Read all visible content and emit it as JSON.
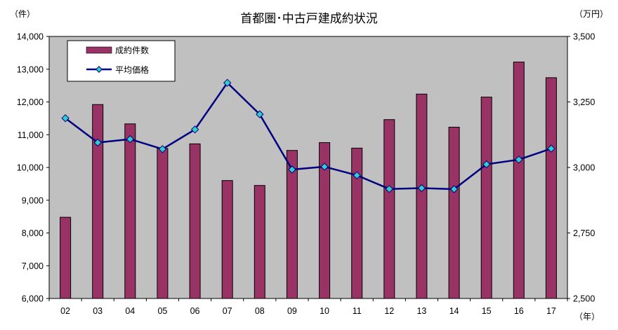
{
  "chart_data": {
    "type": "bar",
    "title": "首都圏･中古戸建成約状況",
    "ylabel_left": "（件）",
    "ylabel_right": "（万円）",
    "xlabel": "（年）",
    "categories": [
      "02",
      "03",
      "04",
      "05",
      "06",
      "07",
      "08",
      "09",
      "10",
      "11",
      "12",
      "13",
      "14",
      "15",
      "16",
      "17"
    ],
    "ylim_left": [
      6000,
      14000
    ],
    "yticks_left": [
      "6,000",
      "7,000",
      "8,000",
      "9,000",
      "10,000",
      "11,000",
      "12,000",
      "13,000",
      "14,000"
    ],
    "ylim_right": [
      2500,
      3500
    ],
    "yticks_right": [
      "2,500",
      "2,750",
      "3,000",
      "3,250",
      "3,500"
    ],
    "grid": false,
    "legend_position": "top-left",
    "series": [
      {
        "name": "成約件数",
        "type": "bar",
        "axis": "left",
        "color": "#993366",
        "values": [
          8480,
          11920,
          11330,
          10580,
          10720,
          9600,
          9450,
          10520,
          10760,
          10590,
          11460,
          12240,
          11230,
          12150,
          13220,
          12740
        ]
      },
      {
        "name": "平均価格",
        "type": "line",
        "axis": "right",
        "color": "#000080",
        "marker_color": "#33CCCC",
        "values": [
          3188,
          3095,
          3108,
          3070,
          3145,
          3323,
          3203,
          2992,
          3003,
          2970,
          2918,
          2921,
          2917,
          3012,
          3030,
          3072
        ]
      }
    ]
  }
}
